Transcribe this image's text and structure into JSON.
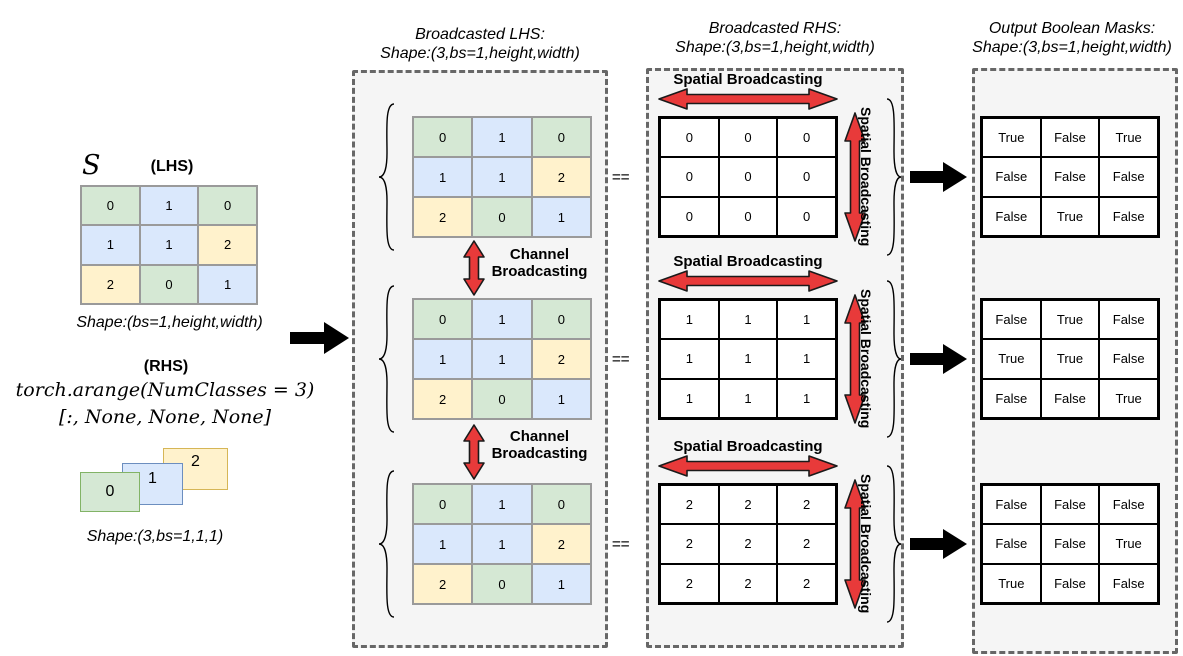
{
  "colors": {
    "green": "#d5e8d4",
    "blue": "#dae8fc",
    "yellow": "#fff2cc",
    "green_border": "#82b366",
    "blue_border": "#6c8ebf",
    "yellow_border": "#d6b656",
    "red": "#e83a3a",
    "panel_bg": "#f5f5f5",
    "panel_border": "#676767"
  },
  "equals_sign": "==",
  "lhs": {
    "s_label": "S",
    "tag": "(LHS)",
    "matrix": [
      [
        "0",
        "1",
        "0"
      ],
      [
        "1",
        "1",
        "2"
      ],
      [
        "2",
        "0",
        "1"
      ]
    ],
    "cell_colors": [
      [
        "green",
        "blue",
        "green"
      ],
      [
        "blue",
        "blue",
        "yellow"
      ],
      [
        "yellow",
        "green",
        "blue"
      ]
    ],
    "shape_label": "Shape:(bs=1,height,width)"
  },
  "rhs": {
    "tag": "(RHS)",
    "code_line1": "torch.arange(NumClasses = 3)",
    "code_line2": "[:, None, None, None]",
    "cards": [
      {
        "value": "0",
        "color": "green"
      },
      {
        "value": "1",
        "color": "blue"
      },
      {
        "value": "2",
        "color": "yellow"
      }
    ],
    "shape_label": "Shape:(3,bs=1,1,1)"
  },
  "broadcasted_lhs": {
    "title_line1": "Broadcasted LHS:",
    "title_line2": "Shape:(3,bs=1,height,width)",
    "channel_label": "Channel Broadcasting",
    "matrices": [
      [
        [
          "0",
          "1",
          "0"
        ],
        [
          "1",
          "1",
          "2"
        ],
        [
          "2",
          "0",
          "1"
        ]
      ],
      [
        [
          "0",
          "1",
          "0"
        ],
        [
          "1",
          "1",
          "2"
        ],
        [
          "2",
          "0",
          "1"
        ]
      ],
      [
        [
          "0",
          "1",
          "0"
        ],
        [
          "1",
          "1",
          "2"
        ],
        [
          "2",
          "0",
          "1"
        ]
      ]
    ],
    "cell_colors": [
      [
        "green",
        "blue",
        "green"
      ],
      [
        "blue",
        "blue",
        "yellow"
      ],
      [
        "yellow",
        "green",
        "blue"
      ]
    ]
  },
  "broadcasted_rhs": {
    "title_line1": "Broadcasted RHS:",
    "title_line2": "Shape:(3,bs=1,height,width)",
    "spatial_label": "Spatial Broadcasting",
    "matrices": [
      [
        [
          "0",
          "0",
          "0"
        ],
        [
          "0",
          "0",
          "0"
        ],
        [
          "0",
          "0",
          "0"
        ]
      ],
      [
        [
          "1",
          "1",
          "1"
        ],
        [
          "1",
          "1",
          "1"
        ],
        [
          "1",
          "1",
          "1"
        ]
      ],
      [
        [
          "2",
          "2",
          "2"
        ],
        [
          "2",
          "2",
          "2"
        ],
        [
          "2",
          "2",
          "2"
        ]
      ]
    ]
  },
  "outputs": {
    "title_line1": "Output Boolean Masks:",
    "title_line2": "Shape:(3,bs=1,height,width)",
    "masks": [
      [
        [
          "True",
          "False",
          "True"
        ],
        [
          "False",
          "False",
          "False"
        ],
        [
          "False",
          "True",
          "False"
        ]
      ],
      [
        [
          "False",
          "True",
          "False"
        ],
        [
          "True",
          "True",
          "False"
        ],
        [
          "False",
          "False",
          "True"
        ]
      ],
      [
        [
          "False",
          "False",
          "False"
        ],
        [
          "False",
          "False",
          "True"
        ],
        [
          "True",
          "False",
          "False"
        ]
      ]
    ]
  }
}
